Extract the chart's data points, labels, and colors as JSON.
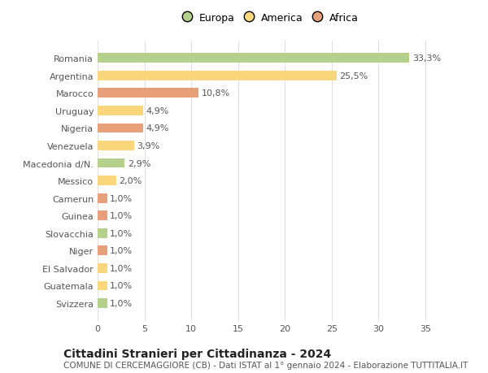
{
  "categories": [
    "Romania",
    "Argentina",
    "Marocco",
    "Uruguay",
    "Nigeria",
    "Venezuela",
    "Macedonia d/N.",
    "Messico",
    "Camerun",
    "Guinea",
    "Slovacchia",
    "Niger",
    "El Salvador",
    "Guatemala",
    "Svizzera"
  ],
  "values": [
    33.3,
    25.5,
    10.8,
    4.9,
    4.9,
    3.9,
    2.9,
    2.0,
    1.0,
    1.0,
    1.0,
    1.0,
    1.0,
    1.0,
    1.0
  ],
  "labels": [
    "33,3%",
    "25,5%",
    "10,8%",
    "4,9%",
    "4,9%",
    "3,9%",
    "2,9%",
    "2,0%",
    "1,0%",
    "1,0%",
    "1,0%",
    "1,0%",
    "1,0%",
    "1,0%",
    "1,0%"
  ],
  "colors": [
    "#b5d08a",
    "#fad67c",
    "#e8a07a",
    "#fad67c",
    "#e8a07a",
    "#fad67c",
    "#b5d08a",
    "#fad67c",
    "#e8a07a",
    "#e8a07a",
    "#b5d08a",
    "#e8a07a",
    "#fad67c",
    "#fad67c",
    "#b5d08a"
  ],
  "legend_labels": [
    "Europa",
    "America",
    "Africa"
  ],
  "legend_colors": [
    "#b5d08a",
    "#fad67c",
    "#e8a07a"
  ],
  "title": "Cittadini Stranieri per Cittadinanza - 2024",
  "subtitle": "COMUNE DI CERCEMAGGIORE (CB) - Dati ISTAT al 1° gennaio 2024 - Elaborazione TUTTITALIA.IT",
  "xlim": [
    0,
    37
  ],
  "xticks": [
    0,
    5,
    10,
    15,
    20,
    25,
    30,
    35
  ],
  "background_color": "#ffffff",
  "grid_color": "#e0e0e0",
  "bar_height": 0.55,
  "label_fontsize": 8,
  "tick_fontsize": 8,
  "title_fontsize": 10,
  "subtitle_fontsize": 7.5
}
